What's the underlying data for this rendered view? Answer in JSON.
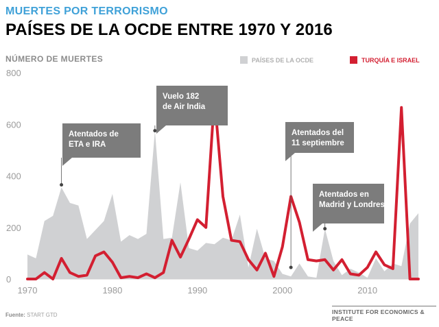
{
  "header": {
    "supertitle": "MUERTES POR TERRORISMO",
    "title": "PAÍSES DE LA OCDE ENTRE 1970 Y 2016"
  },
  "legend": {
    "oecd": "PAÍSES DE LA OCDE",
    "turkey_israel": "TURQUÍA E ISRAEL"
  },
  "footer": {
    "source_label": "Fuente:",
    "source_text": "START GTD",
    "brand": "INSTITUTE FOR ECONOMICS & PEACE"
  },
  "colors": {
    "oecd_area": "#d0d1d3",
    "turkey_israel_line": "#d31f31",
    "callout_bg": "#7c7c7c"
  },
  "chart_data": {
    "type": "line",
    "ylabel": "NÚMERO DE MUERTES",
    "xlabel": "",
    "xlim": [
      1970,
      2016
    ],
    "ylim": [
      0,
      800
    ],
    "x_ticks": [
      1970,
      1980,
      1990,
      2000,
      2010
    ],
    "y_ticks": [
      0,
      200,
      400,
      600,
      800
    ],
    "x": [
      1970,
      1971,
      1972,
      1973,
      1974,
      1975,
      1976,
      1977,
      1978,
      1979,
      1980,
      1981,
      1982,
      1983,
      1984,
      1985,
      1986,
      1987,
      1988,
      1989,
      1990,
      1991,
      1992,
      1993,
      1994,
      1995,
      1996,
      1997,
      1998,
      1999,
      2000,
      2001,
      2002,
      2003,
      2004,
      2005,
      2006,
      2007,
      2008,
      2009,
      2010,
      2011,
      2012,
      2013,
      2014,
      2015,
      2016
    ],
    "series": [
      {
        "name": "PAÍSES DE LA OCDE",
        "style": "area",
        "values": [
          95,
          80,
          225,
          245,
          355,
          295,
          285,
          155,
          190,
          225,
          330,
          145,
          170,
          155,
          175,
          575,
          155,
          160,
          375,
          120,
          110,
          140,
          135,
          160,
          150,
          250,
          45,
          195,
          80,
          70,
          20,
          10,
          60,
          10,
          5,
          195,
          70,
          15,
          40,
          25,
          5,
          80,
          30,
          60,
          50,
          215,
          255
        ]
      },
      {
        "name": "TURQUÍA E ISRAEL",
        "style": "line",
        "values": [
          0,
          0,
          25,
          0,
          80,
          25,
          10,
          15,
          90,
          105,
          65,
          5,
          10,
          5,
          20,
          5,
          25,
          150,
          85,
          155,
          230,
          200,
          705,
          320,
          150,
          145,
          75,
          35,
          100,
          10,
          125,
          320,
          220,
          75,
          70,
          75,
          35,
          75,
          20,
          15,
          45,
          105,
          55,
          40,
          665,
          0,
          0
        ]
      }
    ],
    "annotations": [
      {
        "text": [
          "Atentados de",
          "ETA e IRA"
        ],
        "year": 1974,
        "value": 365
      },
      {
        "text": [
          "Vuelo 182",
          "de Air India"
        ],
        "year": 1985,
        "value": 575
      },
      {
        "text": [
          "Atentados del",
          "11 septiembre"
        ],
        "year": 2001,
        "value": 45
      },
      {
        "text": [
          "Atentados en",
          "Madrid y Londres"
        ],
        "year": 2005,
        "value": 195
      }
    ]
  }
}
